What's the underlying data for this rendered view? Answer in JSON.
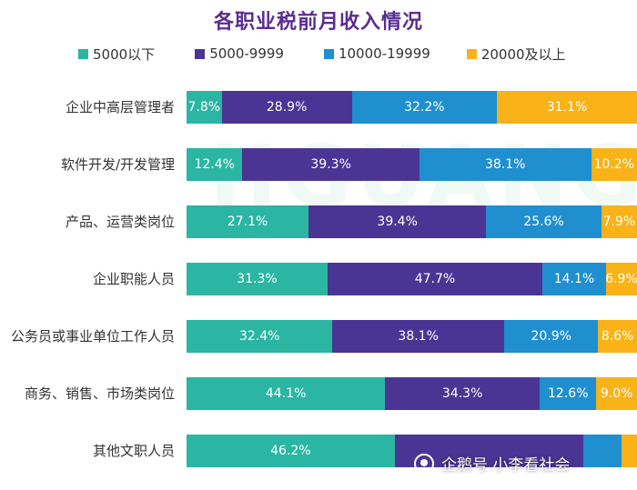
{
  "chart_data": {
    "type": "bar",
    "orientation": "horizontal",
    "stacked": true,
    "title": "各职业税前月收入情况",
    "categories": [
      "企业中高层管理者",
      "软件开发/开发管理",
      "产品、运营类岗位",
      "企业职能人员",
      "公务员或事业单位工作人员",
      "商务、销售、市场类岗位",
      "其他文职人员"
    ],
    "series": [
      {
        "name": "5000以下",
        "color": "#2bb5a3",
        "values": [
          7.8,
          12.4,
          27.1,
          31.3,
          32.4,
          44.1,
          46.2
        ]
      },
      {
        "name": "5000-9999",
        "color": "#4b3594",
        "values": [
          28.9,
          39.3,
          39.4,
          47.7,
          38.1,
          34.3,
          41.8
        ]
      },
      {
        "name": "10000-19999",
        "color": "#1f8fd0",
        "values": [
          32.2,
          38.1,
          25.6,
          14.1,
          20.9,
          12.6,
          8.5
        ]
      },
      {
        "name": "20000及以上",
        "color": "#f9b217",
        "values": [
          31.1,
          10.2,
          7.9,
          6.9,
          8.6,
          9.0,
          3.5
        ]
      }
    ],
    "value_labels": [
      [
        "7.8%",
        "28.9%",
        "32.2%",
        "31.1%"
      ],
      [
        "12.4%",
        "39.3%",
        "38.1%",
        "10.2%"
      ],
      [
        "27.1%",
        "39.4%",
        "25.6%",
        "7.9%"
      ],
      [
        "31.3%",
        "47.7%",
        "14.1%",
        "6.9%"
      ],
      [
        "32.4%",
        "38.1%",
        "20.9%",
        "8.6%"
      ],
      [
        "44.1%",
        "34.3%",
        "12.6%",
        "9.0%"
      ],
      [
        "46.2%",
        "",
        "",
        ""
      ]
    ],
    "xlim": [
      0,
      100
    ],
    "legend_position": "top",
    "grid": false
  },
  "watermark_text": "企鹅号 小李看社会",
  "background_logo_text": "JIGUANG"
}
